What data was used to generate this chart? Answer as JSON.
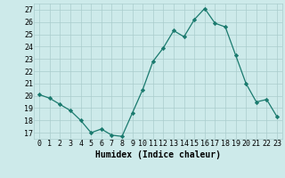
{
  "x": [
    0,
    1,
    2,
    3,
    4,
    5,
    6,
    7,
    8,
    9,
    10,
    11,
    12,
    13,
    14,
    15,
    16,
    17,
    18,
    19,
    20,
    21,
    22,
    23
  ],
  "y": [
    20.1,
    19.8,
    19.3,
    18.8,
    18.0,
    17.0,
    17.3,
    16.8,
    16.7,
    18.6,
    20.5,
    22.8,
    23.9,
    25.3,
    24.8,
    26.2,
    27.1,
    25.9,
    25.6,
    23.3,
    21.0,
    19.5,
    19.7,
    18.3
  ],
  "line_color": "#1a7a6e",
  "marker": "D",
  "marker_size": 2.2,
  "bg_color": "#cdeaea",
  "grid_color": "#aacccc",
  "xlabel": "Humidex (Indice chaleur)",
  "xlim": [
    -0.5,
    23.5
  ],
  "ylim": [
    16.5,
    27.5
  ],
  "yticks": [
    17,
    18,
    19,
    20,
    21,
    22,
    23,
    24,
    25,
    26,
    27
  ],
  "xtick_labels": [
    "0",
    "1",
    "2",
    "3",
    "4",
    "5",
    "6",
    "7",
    "8",
    "9",
    "10",
    "11",
    "12",
    "13",
    "14",
    "15",
    "16",
    "17",
    "18",
    "19",
    "20",
    "21",
    "22",
    "23"
  ],
  "label_fontsize": 7,
  "tick_fontsize": 6
}
